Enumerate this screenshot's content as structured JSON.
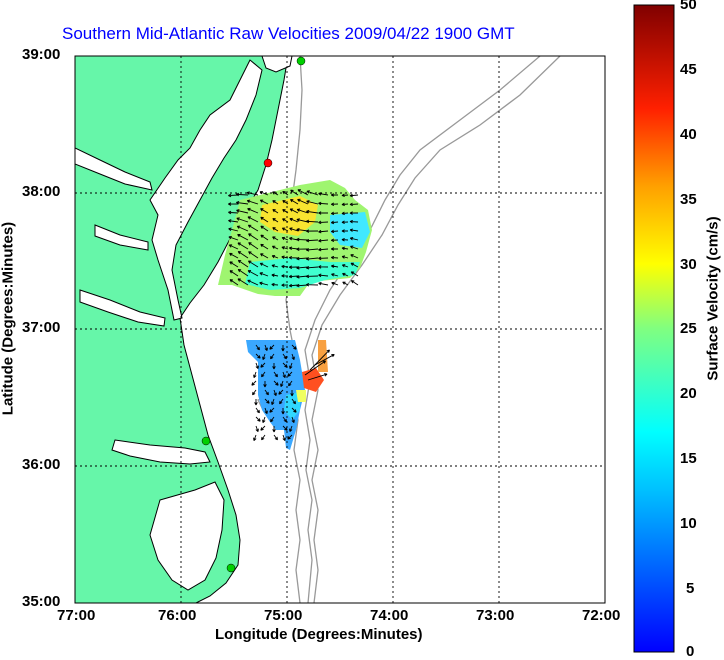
{
  "title": "Southern Mid-Atlantic Raw Velocities 2009/04/22 1900 GMT",
  "x_axis": {
    "label": "Longitude (Degrees:Minutes)",
    "ticks": [
      "77:00",
      "76:00",
      "75:00",
      "74:00",
      "73:00",
      "72:00"
    ]
  },
  "y_axis": {
    "label": "Latitude (Degrees:Minutes)",
    "ticks": [
      "39:00",
      "38:00",
      "37:00",
      "36:00",
      "35:00"
    ]
  },
  "colorbar": {
    "label": "Surface Velocity (cm/s)",
    "ticks": [
      "50",
      "45",
      "40",
      "35",
      "30",
      "25",
      "20",
      "15",
      "10",
      "5",
      "0"
    ],
    "min": 0,
    "max": 50
  },
  "colors": {
    "land": "#66f6a9",
    "coast": "#000000",
    "bathymetry": "#999999",
    "grid": "#000000",
    "title": "#0000ff"
  }
}
